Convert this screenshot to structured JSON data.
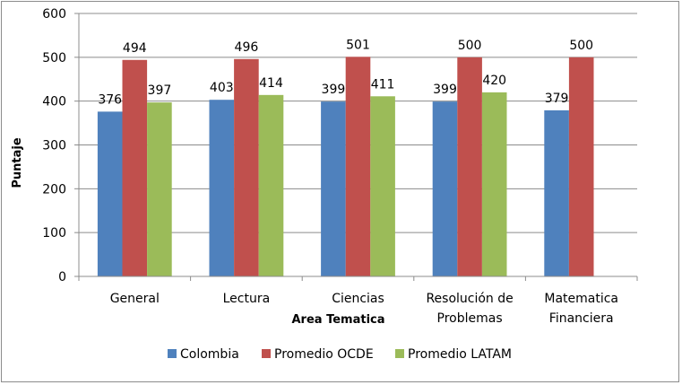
{
  "chart_data": {
    "type": "bar",
    "categories": [
      [
        "General"
      ],
      [
        "Lectura"
      ],
      [
        "Ciencias"
      ],
      [
        "Resolución de",
        "Problemas"
      ],
      [
        "Matematica",
        "Financiera"
      ]
    ],
    "series": [
      {
        "name": "Colombia",
        "color": "#4f81bd",
        "values": [
          376,
          403,
          399,
          399,
          379
        ]
      },
      {
        "name": "Promedio OCDE",
        "color": "#c0504d",
        "values": [
          494,
          496,
          501,
          500,
          500
        ]
      },
      {
        "name": "Promedio LATAM",
        "color": "#9bbb59",
        "values": [
          397,
          414,
          411,
          420,
          null
        ]
      }
    ],
    "xlabel": "Area Tematica",
    "ylabel": "Puntaje",
    "ylim": [
      0,
      600
    ],
    "yticks": [
      0,
      100,
      200,
      300,
      400,
      500,
      600
    ],
    "grid": true,
    "legend_position": "bottom"
  }
}
